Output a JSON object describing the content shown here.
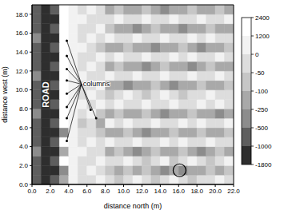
{
  "chart_data": {
    "type": "heatmap",
    "xlabel": "distance north (m)",
    "ylabel": "distance west (m)",
    "xlim": [
      0,
      22
    ],
    "ylim": [
      0,
      19
    ],
    "xticks": [
      {
        "value": 0,
        "label": "0.0"
      },
      {
        "value": 2,
        "label": "2.0"
      },
      {
        "value": 4,
        "label": "4.0"
      },
      {
        "value": 6,
        "label": "6.0"
      },
      {
        "value": 8,
        "label": "8.0"
      },
      {
        "value": 10,
        "label": "10.0"
      },
      {
        "value": 12,
        "label": "12.0"
      },
      {
        "value": 14,
        "label": "14.0"
      },
      {
        "value": 16,
        "label": "16.0"
      },
      {
        "value": 18,
        "label": "18.0"
      },
      {
        "value": 20,
        "label": "20.0"
      },
      {
        "value": 22,
        "label": "22.0"
      }
    ],
    "yticks": [
      {
        "value": 0,
        "label": "0.0"
      },
      {
        "value": 2,
        "label": "2.0"
      },
      {
        "value": 4,
        "label": "4.0"
      },
      {
        "value": 6,
        "label": "6.0"
      },
      {
        "value": 8,
        "label": "8.0"
      },
      {
        "value": 10,
        "label": "10.0"
      },
      {
        "value": 12,
        "label": "12.0"
      },
      {
        "value": 14,
        "label": "14.0"
      },
      {
        "value": 16,
        "label": "16.0"
      },
      {
        "value": 18,
        "label": "18.0"
      }
    ],
    "colorbar": {
      "ticks": [
        2400,
        1200,
        0,
        -50,
        -100,
        -250,
        -500,
        -1000,
        -1800
      ],
      "colors": [
        "#ffffff",
        "#f2f2f2",
        "#dddddd",
        "#c6c6c6",
        "#a9a9a9",
        "#8c8c8c",
        "#5e5e5e",
        "#2e2e2e"
      ]
    },
    "annotations": [
      {
        "text": "ROAD",
        "x": 1.6,
        "y": 9.5
      },
      {
        "text": "columns",
        "x": 5.4,
        "y": 10.6,
        "arrows": [
          [
            3.8,
            15.2
          ],
          [
            3.8,
            13.6
          ],
          [
            3.8,
            12.2
          ],
          [
            3.8,
            11.0
          ],
          [
            3.8,
            9.6
          ],
          [
            3.8,
            8.2
          ],
          [
            3.8,
            7.0
          ],
          [
            3.8,
            4.6
          ],
          [
            6.4,
            7.9
          ],
          [
            7.0,
            7.0
          ]
        ]
      }
    ],
    "circle": {
      "x": 16.1,
      "y": 1.5
    },
    "cells": {
      "x": [
        0.5,
        1.5,
        2.5,
        3.5,
        4.5,
        5.5,
        6.5,
        7.5,
        8.5,
        9.5,
        10.5,
        11.5,
        12.5,
        13.5,
        14.5,
        15.5,
        16.5,
        17.5,
        18.5,
        19.5,
        20.5,
        21.5
      ],
      "y": [
        0.5,
        1.5,
        2.5,
        3.5,
        4.5,
        5.5,
        6.5,
        7.5,
        8.5,
        9.5,
        10.5,
        11.5,
        12.5,
        13.5,
        14.5,
        15.5,
        16.5,
        17.5,
        18.5
      ],
      "values": [
        [
          -1000,
          -1800,
          -1000,
          -250,
          0,
          -50,
          -50,
          0,
          -50,
          -100,
          -50,
          0,
          -50,
          -100,
          -50,
          0,
          -50,
          -100,
          -50,
          -50,
          0,
          -50
        ],
        [
          -1000,
          -1800,
          -1800,
          -500,
          0,
          -50,
          0,
          -50,
          -100,
          -250,
          -100,
          -250,
          -100,
          -250,
          -500,
          -250,
          -500,
          -250,
          -250,
          -100,
          -250,
          -100
        ],
        [
          -1000,
          -1800,
          -1000,
          1200,
          0,
          -50,
          -50,
          0,
          -50,
          -50,
          0,
          -50,
          -100,
          -50,
          0,
          -100,
          -50,
          0,
          -50,
          -100,
          -50,
          0
        ],
        [
          -500,
          -1800,
          -1800,
          -250,
          0,
          0,
          -50,
          -50,
          -250,
          -100,
          -250,
          -500,
          -250,
          -100,
          -250,
          -250,
          -100,
          -250,
          -500,
          -250,
          -100,
          -250
        ],
        [
          -1000,
          -1800,
          -1000,
          2400,
          0,
          -50,
          0,
          -50,
          0,
          -50,
          -50,
          0,
          -50,
          -50,
          0,
          -50,
          0,
          -50,
          -50,
          0,
          -50,
          -50
        ],
        [
          -1000,
          -1800,
          -1800,
          -500,
          0,
          -50,
          -50,
          -100,
          -250,
          -250,
          -100,
          -250,
          -500,
          -250,
          -250,
          -100,
          -250,
          -250,
          -100,
          -250,
          -250,
          -100
        ],
        [
          -1000,
          -1800,
          -1000,
          1200,
          0,
          -100,
          -50,
          -250,
          0,
          -50,
          0,
          -50,
          -50,
          0,
          -50,
          -50,
          0,
          -50,
          0,
          -50,
          -50,
          0
        ],
        [
          -500,
          -1800,
          -1800,
          2400,
          0,
          -50,
          0,
          -100,
          -250,
          -100,
          -250,
          -250,
          -100,
          -250,
          -500,
          -250,
          -250,
          -100,
          -250,
          -250,
          -500,
          -250
        ],
        [
          -1000,
          -1800,
          -1000,
          1200,
          0,
          0,
          -50,
          0,
          -50,
          0,
          -50,
          -50,
          0,
          -50,
          -50,
          0,
          -50,
          -50,
          0,
          -50,
          0,
          -50
        ],
        [
          -1000,
          -1800,
          -1800,
          2400,
          0,
          -50,
          0,
          -50,
          -100,
          -50,
          0,
          -50,
          -100,
          -50,
          0,
          -50,
          -100,
          -50,
          -50,
          0,
          -50,
          -50
        ],
        [
          -1000,
          -1800,
          -1000,
          1200,
          0,
          -50,
          -50,
          0,
          -250,
          -250,
          -500,
          -250,
          -250,
          -100,
          -250,
          -500,
          -250,
          -250,
          -100,
          -250,
          -250,
          -100
        ],
        [
          -500,
          -1800,
          -1800,
          2400,
          0,
          0,
          -50,
          -50,
          0,
          -50,
          -50,
          0,
          -50,
          -50,
          0,
          -50,
          -50,
          0,
          -50,
          -50,
          0,
          -50
        ],
        [
          -1000,
          -1800,
          -1000,
          1200,
          0,
          -50,
          0,
          -50,
          -250,
          -100,
          -250,
          -250,
          -500,
          -250,
          -100,
          -250,
          -250,
          -500,
          -250,
          -100,
          -250,
          -250
        ],
        [
          -1000,
          -1800,
          -1800,
          2400,
          0,
          -50,
          -50,
          0,
          -50,
          0,
          -50,
          -50,
          0,
          -50,
          -50,
          0,
          -50,
          0,
          -50,
          -50,
          0,
          -50
        ],
        [
          -1000,
          -1800,
          -1000,
          1200,
          0,
          0,
          -50,
          -100,
          -250,
          -250,
          -100,
          -250,
          -250,
          -500,
          -250,
          -250,
          -100,
          -250,
          -500,
          -250,
          -250,
          -100
        ],
        [
          -500,
          -1800,
          -1800,
          2400,
          0,
          -50,
          0,
          -50,
          0,
          -50,
          -50,
          0,
          -50,
          -50,
          0,
          -50,
          -50,
          0,
          -50,
          0,
          -50,
          -50
        ],
        [
          -1000,
          -1800,
          -1000,
          1200,
          0,
          -50,
          -50,
          0,
          -100,
          -250,
          -250,
          -500,
          -250,
          -100,
          -250,
          -250,
          -500,
          -250,
          -250,
          -100,
          -250,
          -250
        ],
        [
          -1000,
          -1800,
          -1800,
          2400,
          0,
          0,
          -50,
          -50,
          -50,
          0,
          -50,
          -50,
          0,
          -50,
          -50,
          0,
          -50,
          -50,
          0,
          -50,
          -50,
          0
        ],
        [
          -1000,
          -1800,
          -1000,
          1200,
          0,
          -50,
          0,
          -50,
          -250,
          -100,
          -250,
          -250,
          -100,
          -250,
          -500,
          -250,
          -250,
          -100,
          -250,
          -250,
          -100,
          -250
        ]
      ]
    }
  }
}
